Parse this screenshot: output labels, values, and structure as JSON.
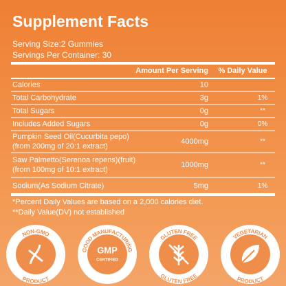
{
  "header": {
    "title": "Supplement Facts",
    "serving_size": "Serving Size:2 Gummies",
    "servings_per_container": "Servings Per Container: 30"
  },
  "table": {
    "columns": [
      "Amount Per Serving",
      "% Daily Value"
    ],
    "rows": [
      {
        "name": [
          "Calories"
        ],
        "amount": "10",
        "dv": ""
      },
      {
        "name": [
          "Total Carbohydrate"
        ],
        "amount": "3g",
        "dv": "1%"
      },
      {
        "name": [
          "Total Sugars"
        ],
        "amount": "0g",
        "dv": "**"
      },
      {
        "name": [
          "Includes Added Sugars"
        ],
        "amount": "0g",
        "dv": "0%"
      },
      {
        "name": [
          "Pumpkin Seed Oil(Cucurbita pepo)",
          "(from 200mg of 20:1 extract)"
        ],
        "amount": "4000mg",
        "dv": "**"
      },
      {
        "name": [
          "Saw Palmetto(Serenoa repens)(fruit)",
          "(from 100mg of 10:1 extract)"
        ],
        "amount": "1000mg",
        "dv": "**"
      },
      {
        "name": [
          "Sodium(As Sodium Citrate)"
        ],
        "amount": "5mg",
        "dv": "1%"
      }
    ]
  },
  "footnotes": [
    "*Percent Daily Values are based on a 2,000 calories diet.",
    "**Daily Value(DV) not established"
  ],
  "badges": [
    {
      "top": "NON-GMO",
      "bottom": "PRODUCT"
    },
    {
      "top": "GOOD MANUFACTURING",
      "center": [
        "GMP",
        "CERTIFIED"
      ]
    },
    {
      "top": "GLUTEN FREE",
      "bottom": "GLUTEN FREE"
    },
    {
      "top": "VEGETARIAN",
      "bottom": "PRODUCT"
    }
  ]
}
